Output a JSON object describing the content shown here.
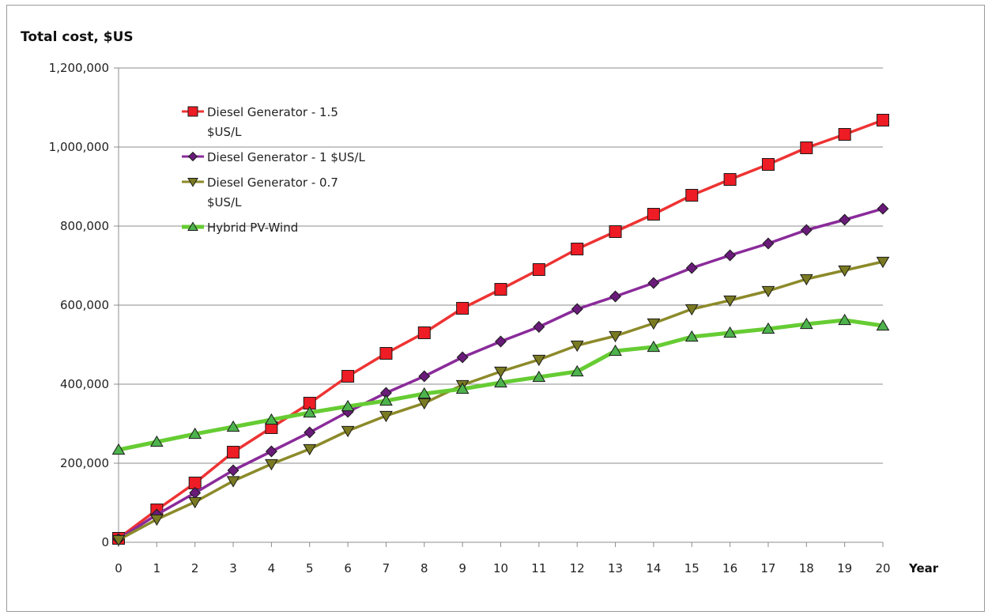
{
  "chart_data": {
    "type": "line",
    "title": "Total cost, $US",
    "xlabel": "Year",
    "ylabel": "",
    "x": [
      0,
      1,
      2,
      3,
      4,
      5,
      6,
      7,
      8,
      9,
      10,
      11,
      12,
      13,
      14,
      15,
      16,
      17,
      18,
      19,
      20
    ],
    "ylim": [
      0,
      1200000
    ],
    "yticks": [
      0,
      200000,
      400000,
      600000,
      800000,
      1000000,
      1200000
    ],
    "ytick_labels": [
      "0",
      "200,000",
      "400,000",
      "600,000",
      "800,000",
      "1,000,000",
      "1,200,000"
    ],
    "grid": true,
    "legend": "top-left",
    "series": [
      {
        "name": "Diesel Generator - 1.5 $US/L",
        "legend_lines": [
          "Diesel Generator - 1.5",
          "$US/L"
        ],
        "color": "#ee3333",
        "marker_color": "#ee1c24",
        "marker": "square",
        "values": [
          10000,
          82000,
          150000,
          228000,
          290000,
          352000,
          420000,
          478000,
          530000,
          592000,
          640000,
          690000,
          742000,
          786000,
          830000,
          878000,
          918000,
          956000,
          998000,
          1032000,
          1068000
        ]
      },
      {
        "name": "Diesel Generator - 1 $US/L",
        "legend_lines": [
          "Diesel Generator - 1 $US/L"
        ],
        "color": "#8a2b9a",
        "marker_color": "#6a1b7a",
        "marker": "diamond",
        "values": [
          8000,
          70000,
          125000,
          182000,
          230000,
          278000,
          330000,
          378000,
          420000,
          468000,
          508000,
          545000,
          590000,
          622000,
          656000,
          694000,
          726000,
          756000,
          790000,
          816000,
          844000
        ]
      },
      {
        "name": "Diesel Generator - 0.7 $US/L",
        "legend_lines": [
          "Diesel Generator - 0.7",
          "$US/L"
        ],
        "color": "#8c8a2a",
        "marker_color": "#7a7a22",
        "marker": "triangle-down",
        "values": [
          6000,
          58000,
          102000,
          155000,
          198000,
          236000,
          282000,
          320000,
          352000,
          398000,
          432000,
          462000,
          498000,
          522000,
          554000,
          590000,
          612000,
          636000,
          666000,
          688000,
          710000
        ]
      },
      {
        "name": "Hybrid PV-Wind",
        "legend_lines": [
          "Hybrid PV-Wind"
        ],
        "color": "#66cc33",
        "marker_color": "#4db34d",
        "marker": "triangle-up",
        "values": [
          234000,
          254000,
          274000,
          292000,
          310000,
          328000,
          344000,
          358000,
          376000,
          388000,
          404000,
          418000,
          432000,
          484000,
          494000,
          520000,
          530000,
          540000,
          552000,
          562000,
          548000
        ]
      }
    ]
  }
}
